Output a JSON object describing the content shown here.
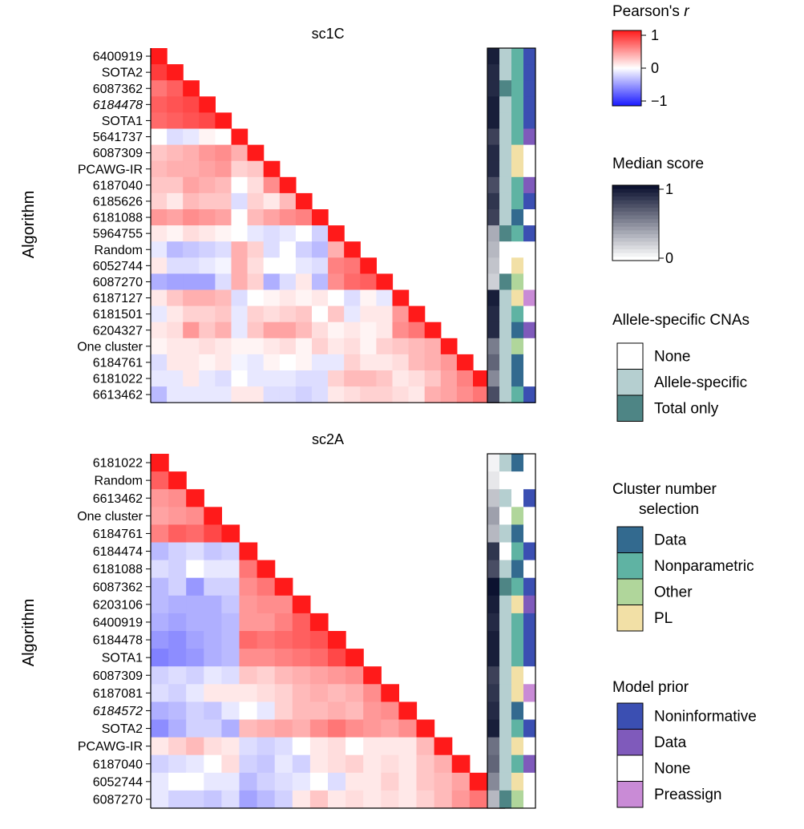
{
  "chart_data": [
    {
      "type": "heatmap",
      "title": "sc1C",
      "ylabel": "Algorithm",
      "labels": [
        "6400919",
        "SOTA2",
        "6087362",
        "6184478",
        "SOTA1",
        "5641737",
        "6087309",
        "PCAWG-IR",
        "6187040",
        "6185626",
        "6181088",
        "5964755",
        "Random",
        "6052744",
        "6087270",
        "6187127",
        "6181501",
        "6204327",
        "One cluster",
        "6184761",
        "6181022",
        "6613462"
      ],
      "italic_labels": [
        "6184478"
      ],
      "matrix_lower": [
        [
          1
        ],
        [
          0.85,
          1
        ],
        [
          0.6,
          0.7,
          1
        ],
        [
          0.7,
          0.75,
          0.8,
          1
        ],
        [
          0.65,
          0.7,
          0.75,
          0.8,
          1
        ],
        [
          0,
          -0.15,
          -0.1,
          0.05,
          0,
          1
        ],
        [
          0.25,
          0.3,
          0.35,
          0.45,
          0.5,
          0.35,
          1
        ],
        [
          0.3,
          0.35,
          0.35,
          0.4,
          0.45,
          0.2,
          0.25,
          1
        ],
        [
          0.25,
          0.25,
          0.4,
          0.35,
          0.3,
          0,
          0.15,
          0.5,
          1
        ],
        [
          0.2,
          0.1,
          0.3,
          0.25,
          0.25,
          -0.15,
          0.2,
          0.1,
          0.3,
          1
        ],
        [
          0.45,
          0.4,
          0.5,
          0.45,
          0.4,
          0,
          0.3,
          0.4,
          0.5,
          0.55,
          1
        ],
        [
          0.1,
          0.05,
          0.15,
          0.1,
          0.05,
          0,
          -0.1,
          -0.15,
          -0.1,
          0,
          -0.2,
          1
        ],
        [
          -0.1,
          -0.3,
          -0.25,
          -0.2,
          -0.15,
          0.35,
          0.2,
          -0.15,
          0,
          -0.2,
          -0.3,
          0.35,
          1
        ],
        [
          0.1,
          -0.15,
          -0.15,
          -0.1,
          -0.05,
          0.35,
          0.15,
          0,
          0,
          -0.1,
          -0.15,
          0.55,
          0.6,
          1
        ],
        [
          -0.35,
          -0.4,
          -0.4,
          -0.4,
          -0.15,
          0.35,
          0.2,
          -0.35,
          -0.15,
          0.1,
          -0.3,
          0.5,
          0.65,
          0.7,
          1
        ],
        [
          0.1,
          0.25,
          0.35,
          0.35,
          0.3,
          -0.15,
          0,
          0.05,
          0.1,
          0.05,
          0.1,
          0,
          -0.15,
          0.05,
          -0.1,
          1
        ],
        [
          -0.1,
          0.1,
          0.2,
          0.2,
          0.25,
          -0.1,
          0.2,
          0.15,
          0.2,
          0.25,
          0,
          0.25,
          -0.1,
          0.1,
          0.1,
          0.45,
          1
        ],
        [
          0.1,
          0.15,
          0.45,
          0.25,
          0.35,
          -0.1,
          0.25,
          0.4,
          0.4,
          0.3,
          0.15,
          0.05,
          0.1,
          0.05,
          0.1,
          0.5,
          0.6,
          1
        ],
        [
          0.05,
          0.1,
          0.1,
          0.15,
          0.1,
          0.05,
          0.05,
          0.1,
          0.15,
          0.05,
          0.2,
          0.1,
          0.15,
          0.05,
          0.2,
          0.25,
          0.3,
          0.35,
          1
        ],
        [
          -0.15,
          0.1,
          0.1,
          0.05,
          0.1,
          -0.05,
          -0.1,
          0.05,
          0,
          0.05,
          -0.1,
          -0.1,
          0.2,
          0.1,
          0.1,
          0.15,
          0.3,
          0.35,
          0.45,
          1
        ],
        [
          -0.1,
          -0.1,
          0.1,
          -0.1,
          -0.15,
          0,
          -0.1,
          -0.1,
          -0.1,
          -0.15,
          -0.15,
          0.2,
          0.3,
          0.3,
          0.25,
          0.1,
          0.15,
          0.25,
          0.4,
          0.55,
          1
        ],
        [
          -0.3,
          -0.1,
          -0.1,
          -0.1,
          -0.1,
          0.1,
          0.1,
          -0.15,
          -0.15,
          -0.2,
          -0.15,
          0.1,
          0.15,
          0.2,
          0.2,
          0.15,
          0.1,
          0.35,
          0.4,
          0.5,
          0.6,
          1
        ]
      ],
      "median_score": [
        0.95,
        0.9,
        0.9,
        0.95,
        0.95,
        0.8,
        0.9,
        0.9,
        0.75,
        0.85,
        0.8,
        0.35,
        0.3,
        0.25,
        0.2,
        0.95,
        0.9,
        0.9,
        0.55,
        0.65,
        0.5,
        0.75
      ],
      "allele_specific": [
        "Allele-specific",
        "Allele-specific",
        "Total only",
        "Allele-specific",
        "Allele-specific",
        "Allele-specific",
        "Allele-specific",
        "Allele-specific",
        "Allele-specific",
        "Allele-specific",
        "Allele-specific",
        "Total only",
        "None",
        "None",
        "Total only",
        "Allele-specific",
        "Allele-specific",
        "Allele-specific",
        "Allele-specific",
        "Allele-specific",
        "Allele-specific",
        "Allele-specific"
      ],
      "cluster_selection": [
        "Nonparametric",
        "Nonparametric",
        "Nonparametric",
        "Nonparametric",
        "Nonparametric",
        "Nonparametric",
        "PL",
        "PL",
        "Nonparametric",
        "Nonparametric",
        "Data",
        "Nonparametric",
        "None",
        "PL",
        "Other",
        "PL",
        "Nonparametric",
        "Data",
        "Other",
        "Data",
        "Data",
        "Nonparametric"
      ],
      "model_prior": [
        "Noninformative",
        "Noninformative",
        "Noninformative",
        "Noninformative",
        "Noninformative",
        "Data",
        "None",
        "None",
        "Data",
        "Noninformative",
        "None",
        "Noninformative",
        "None",
        "None",
        "None",
        "Preassign",
        "None",
        "Data",
        "None",
        "None",
        "None",
        "Noninformative"
      ]
    },
    {
      "type": "heatmap",
      "title": "sc2A",
      "ylabel": "Algorithm",
      "labels": [
        "6181022",
        "Random",
        "6613462",
        "One cluster",
        "6184761",
        "6184474",
        "6181088",
        "6087362",
        "6203106",
        "6400919",
        "6184478",
        "SOTA1",
        "6087309",
        "6187081",
        "6184572",
        "SOTA2",
        "PCAWG-IR",
        "6187040",
        "6052744",
        "6087270"
      ],
      "italic_labels": [
        "6184572"
      ],
      "matrix_lower": [
        [
          1
        ],
        [
          0.7,
          1
        ],
        [
          0.45,
          0.5,
          1
        ],
        [
          0.4,
          0.45,
          0.5,
          1
        ],
        [
          0.55,
          0.7,
          0.65,
          0.8,
          1
        ],
        [
          -0.3,
          -0.2,
          -0.15,
          -0.25,
          -0.2,
          1
        ],
        [
          -0.15,
          -0.2,
          0,
          -0.1,
          -0.1,
          0.6,
          1
        ],
        [
          -0.3,
          -0.2,
          -0.45,
          -0.2,
          -0.2,
          0.5,
          0.6,
          1
        ],
        [
          -0.3,
          -0.35,
          -0.35,
          -0.35,
          -0.25,
          0.45,
          0.5,
          0.5,
          1
        ],
        [
          -0.35,
          -0.4,
          -0.35,
          -0.35,
          -0.3,
          0.45,
          0.45,
          0.55,
          0.7,
          1
        ],
        [
          -0.45,
          -0.5,
          -0.4,
          -0.35,
          -0.3,
          0.65,
          0.6,
          0.65,
          0.7,
          0.75,
          1
        ],
        [
          -0.55,
          -0.5,
          -0.45,
          -0.35,
          -0.3,
          0.5,
          0.5,
          0.55,
          0.6,
          0.65,
          0.8,
          1
        ],
        [
          -0.2,
          -0.15,
          -0.2,
          -0.1,
          -0.15,
          0.25,
          0.2,
          0.3,
          0.35,
          0.4,
          0.45,
          0.5,
          1
        ],
        [
          -0.15,
          -0.2,
          -0.1,
          0.1,
          0.1,
          0.1,
          0.15,
          0.2,
          0.3,
          0.35,
          0.3,
          0.35,
          0.5,
          1
        ],
        [
          -0.35,
          -0.3,
          -0.2,
          -0.25,
          -0.1,
          0,
          -0.1,
          0.2,
          0.3,
          0.3,
          0.35,
          0.3,
          0.45,
          0.5,
          1
        ],
        [
          -0.5,
          -0.35,
          -0.2,
          -0.2,
          -0.35,
          0.3,
          0.35,
          0.4,
          0.35,
          0.5,
          0.6,
          0.5,
          0.45,
          0.4,
          0.5,
          1
        ],
        [
          0.1,
          0.2,
          0.3,
          0.15,
          0.1,
          -0.15,
          -0.2,
          -0.15,
          0,
          0.1,
          0.15,
          0,
          0.1,
          0.1,
          0.1,
          0.3,
          1
        ],
        [
          -0.2,
          -0.15,
          -0.1,
          0,
          0.15,
          -0.2,
          -0.25,
          -0.1,
          -0.2,
          0.1,
          0.15,
          0.2,
          0.1,
          0.15,
          0.1,
          0.25,
          0.35,
          1
        ],
        [
          -0.1,
          0,
          0,
          -0.1,
          -0.1,
          -0.3,
          -0.2,
          -0.15,
          -0.1,
          0,
          -0.15,
          0.1,
          0.1,
          0.2,
          0.1,
          0.25,
          0.3,
          0.4,
          1
        ],
        [
          -0.1,
          -0.2,
          -0.2,
          -0.25,
          -0.15,
          -0.4,
          -0.3,
          -0.2,
          0.1,
          0.25,
          0.1,
          0.15,
          0.1,
          0.15,
          0.1,
          0.2,
          0.3,
          0.45,
          0.6,
          1
        ]
      ],
      "median_score": [
        0.05,
        0.1,
        0.25,
        0.4,
        0.3,
        0.85,
        0.75,
        1.0,
        0.95,
        0.9,
        0.95,
        0.95,
        0.8,
        0.85,
        0.9,
        0.95,
        0.6,
        0.65,
        0.5,
        0.3
      ],
      "allele_specific": [
        "Allele-specific",
        "None",
        "Allele-specific",
        "None",
        "Allele-specific",
        "None",
        "Allele-specific",
        "Total only",
        "Allele-specific",
        "Allele-specific",
        "Allele-specific",
        "Allele-specific",
        "Allele-specific",
        "Allele-specific",
        "Allele-specific",
        "Allele-specific",
        "Allele-specific",
        "Allele-specific",
        "Allele-specific",
        "Total only"
      ],
      "cluster_selection": [
        "Data",
        "None",
        "None",
        "Other",
        "Data",
        "Nonparametric",
        "Data",
        "Nonparametric",
        "PL",
        "Nonparametric",
        "Nonparametric",
        "Nonparametric",
        "PL",
        "PL",
        "Data",
        "Nonparametric",
        "PL",
        "Nonparametric",
        "PL",
        "Other"
      ],
      "model_prior": [
        "None",
        "None",
        "Noninformative",
        "None",
        "None",
        "Noninformative",
        "None",
        "Noninformative",
        "Data",
        "Noninformative",
        "Noninformative",
        "Noninformative",
        "None",
        "Preassign",
        "None",
        "Noninformative",
        "None",
        "Data",
        "None",
        "None"
      ]
    }
  ],
  "legends": {
    "pearson": {
      "title": "Pearson's ",
      "title_var": "r",
      "ticks": [
        "1",
        "0",
        "−1"
      ]
    },
    "median": {
      "title": "Median score",
      "ticks": [
        "1",
        "0"
      ]
    },
    "allele": {
      "title": "Allele-specific CNAs",
      "items": [
        {
          "label": "None",
          "color": "#ffffff"
        },
        {
          "label": "Allele-specific",
          "color": "#b5cfd0"
        },
        {
          "label": "Total only",
          "color": "#4e8585"
        }
      ]
    },
    "cluster": {
      "title_line1": "Cluster number",
      "title_line2": "selection",
      "items": [
        {
          "label": "Data",
          "color": "#336a8f"
        },
        {
          "label": "Nonparametric",
          "color": "#5fb3a3"
        },
        {
          "label": "Other",
          "color": "#b0d69b"
        },
        {
          "label": "PL",
          "color": "#f2e0a6"
        }
      ]
    },
    "prior": {
      "title": "Model prior",
      "items": [
        {
          "label": "Noninformative",
          "color": "#3b4fb2"
        },
        {
          "label": "Data",
          "color": "#7f5abb"
        },
        {
          "label": "None",
          "color": "#ffffff"
        },
        {
          "label": "Preassign",
          "color": "#c98bd6"
        }
      ]
    }
  },
  "colors": {
    "max": "#ff1a1a",
    "mid": "#ffffff",
    "min": "#1a1aff",
    "median_high": "#0c1230"
  }
}
